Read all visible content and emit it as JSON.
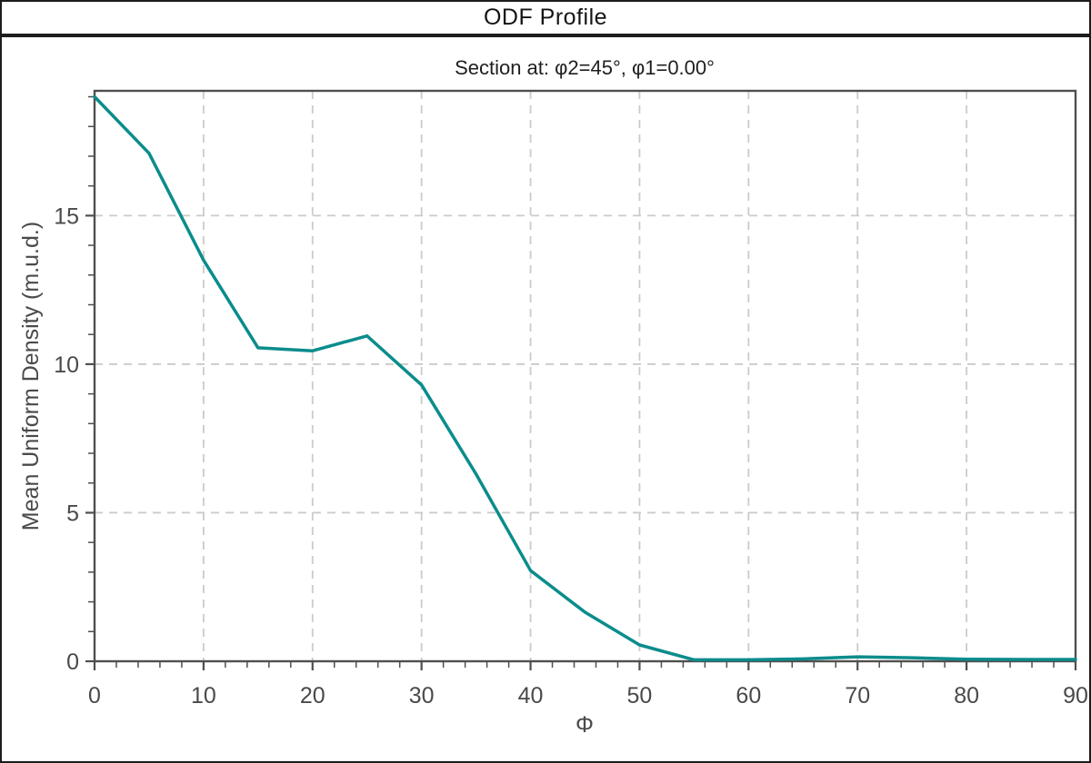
{
  "window": {
    "title": "ODF Profile"
  },
  "chart_data": {
    "type": "line",
    "title": "ODF Profile",
    "subtitle": "Section at: φ2=45°, φ1=0.00°",
    "xlabel": "Φ",
    "ylabel": "Mean Uniform Density (m.u.d.)",
    "xlim": [
      0,
      90
    ],
    "ylim": [
      0,
      19.2
    ],
    "x_major_ticks": [
      0,
      10,
      20,
      30,
      40,
      50,
      60,
      70,
      80,
      90
    ],
    "x_minor_step": 2,
    "y_major_ticks": [
      0,
      5,
      10,
      15
    ],
    "y_minor_step": 1,
    "grid": "dashed-on-major-ticks",
    "legend": "none",
    "x": [
      0,
      5,
      10,
      15,
      20,
      25,
      30,
      35,
      40,
      45,
      50,
      55,
      60,
      65,
      70,
      75,
      80,
      85,
      90
    ],
    "y": [
      19.0,
      17.1,
      13.5,
      10.55,
      10.45,
      10.95,
      9.3,
      6.3,
      3.05,
      1.65,
      0.55,
      0.05,
      0.05,
      0.08,
      0.15,
      0.12,
      0.07,
      0.06,
      0.06
    ]
  },
  "colors": {
    "line": "#0B8C8C",
    "axis": "#4f4f4f",
    "grid": "#cbcbcb",
    "tick_label": "#4a4a4a",
    "frame": "#1c1c1c"
  }
}
